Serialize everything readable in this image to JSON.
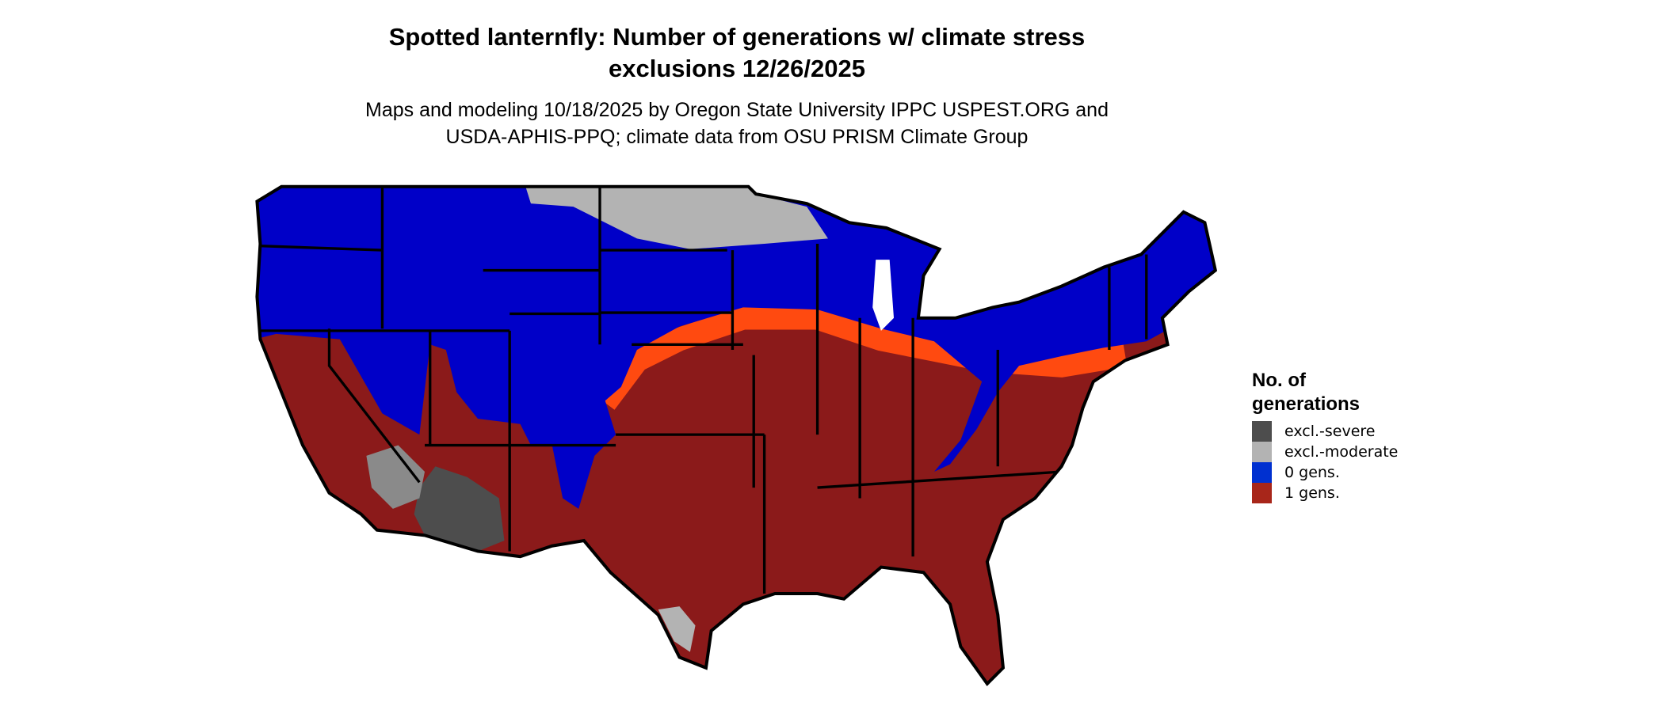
{
  "title": {
    "line1": "Spotted lanternfly: Number of generations w/ climate stress",
    "line2": "exclusions 12/26/2025"
  },
  "subtitle": {
    "line1": "Maps and modeling 10/18/2025 by Oregon State University IPPC USPEST.ORG and",
    "line2": "USDA-APHIS-PPQ; climate data from OSU PRISM Climate Group"
  },
  "legend": {
    "title_line1": "No. of",
    "title_line2": "generations",
    "items": [
      {
        "label": "excl.-severe",
        "color": "#4d4d4d"
      },
      {
        "label": "excl.-moderate",
        "color": "#b3b3b3"
      },
      {
        "label": "0 gens.",
        "color": "#0030d0"
      },
      {
        "label": "1 gens.",
        "color": "#a8261a"
      }
    ]
  },
  "map_colors": {
    "zero_gens": "#0000c8",
    "one_gen": "#8b1a1a",
    "transition": "#ff4a10",
    "excl_moderate": "#b3b3b3",
    "excl_severe": "#4d4d4d",
    "borders": "#000000"
  }
}
